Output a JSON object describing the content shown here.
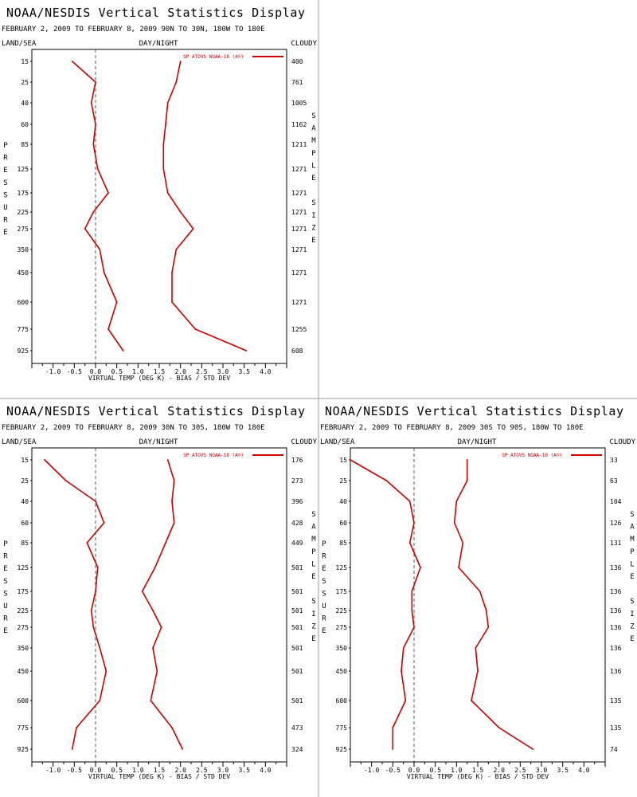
{
  "chart_data": [
    {
      "type": "line",
      "title": "NOAA/NESDIS Vertical Statistics Display",
      "subtitle": "FEBRUARY 2, 2009 TO FEBRUARY 8, 2009 90N TO 30N, 180W TO 180E",
      "header_left": "LAND/SEA",
      "header_center": "DAY/NIGHT",
      "header_right": "CLOUDY",
      "xlabel": "VIRTUAL TEMP (DEG K) - BIAS / STD DEV",
      "ylabel": "PRESSURE",
      "y2label": "SAMPLE SIZE",
      "legend": "SP ATOVS NOAA-18 (A®)",
      "xlim": [
        -1.5,
        4.5
      ],
      "x_ticks": [
        "-1.0",
        "-0.5",
        "0.0",
        "0.5",
        "1.0",
        "1.5",
        "2.0",
        "2.5",
        "3.0",
        "3.5",
        "4.0"
      ],
      "pressure_levels": [
        "15",
        "25",
        "40",
        "60",
        "85",
        "125",
        "175",
        "225",
        "275",
        "350",
        "450",
        "600",
        "775",
        "925"
      ],
      "sample_size": [
        "400",
        "761",
        "1005",
        "1162",
        "1211",
        "1271",
        "1271",
        "1271",
        "1271",
        "1271",
        "1271",
        "1271",
        "1255",
        "608"
      ],
      "color": "#cc0000",
      "series": [
        {
          "values": [
            -0.55,
            0.0,
            -0.1,
            0.0,
            -0.05,
            0.05,
            0.3,
            -0.05,
            -0.25,
            0.1,
            0.2,
            0.5,
            0.3,
            0.65
          ]
        },
        {
          "values": [
            2.0,
            1.9,
            1.7,
            1.65,
            1.6,
            1.6,
            1.7,
            2.0,
            2.3,
            1.9,
            1.8,
            1.8,
            2.35,
            3.55
          ]
        }
      ]
    },
    {
      "type": "line",
      "title": "NOAA/NESDIS Vertical Statistics Display",
      "subtitle": "FEBRUARY 2, 2009 TO FEBRUARY 8, 2009 30N TO 30S, 180W TO 180E",
      "header_left": "LAND/SEA",
      "header_center": "DAY/NIGHT",
      "header_right": "CLOUDY",
      "xlabel": "VIRTUAL TEMP (DEG K) - BIAS / STD DEV",
      "ylabel": "PRESSURE",
      "y2label": "SAMPLE SIZE",
      "legend": "SP ATOVS NOAA-18 (A®)",
      "xlim": [
        -1.5,
        4.5
      ],
      "x_ticks": [
        "-1.0",
        "-0.5",
        "0.0",
        "0.5",
        "1.0",
        "1.5",
        "2.0",
        "2.5",
        "3.0",
        "3.5",
        "4.0"
      ],
      "pressure_levels": [
        "15",
        "25",
        "40",
        "60",
        "85",
        "125",
        "175",
        "225",
        "275",
        "350",
        "450",
        "600",
        "775",
        "925"
      ],
      "sample_size": [
        "176",
        "273",
        "396",
        "428",
        "449",
        "501",
        "501",
        "501",
        "501",
        "501",
        "501",
        "501",
        "473",
        "324"
      ],
      "color": "#cc0000",
      "series": [
        {
          "values": [
            -1.2,
            -0.7,
            0.0,
            0.2,
            -0.2,
            0.05,
            0.0,
            -0.1,
            -0.05,
            0.1,
            0.25,
            0.1,
            -0.45,
            -0.55
          ]
        },
        {
          "values": [
            1.7,
            1.85,
            1.8,
            1.85,
            1.65,
            1.4,
            1.1,
            1.35,
            1.55,
            1.35,
            1.45,
            1.3,
            1.8,
            2.05
          ]
        }
      ]
    },
    {
      "type": "line",
      "title": "NOAA/NESDIS Vertical Statistics Display",
      "subtitle": "FEBRUARY 2, 2009 TO FEBRUARY 8, 2009 30S TO 90S, 180W TO 180E",
      "header_left": "LAND/SEA",
      "header_center": "DAY/NIGHT",
      "header_right": "CLOUDY",
      "xlabel": "VIRTUAL TEMP (DEG K) - BIAS / STD DEV",
      "ylabel": "PRESSURE",
      "y2label": "SAMPLE SIZE",
      "legend": "SP ATOVS NOAA-18 (A®)",
      "xlim": [
        -1.5,
        4.5
      ],
      "x_ticks": [
        "-1.0",
        "-0.5",
        "0.0",
        "0.5",
        "1.0",
        "1.5",
        "2.0",
        "2.5",
        "3.0",
        "3.5",
        "4.0"
      ],
      "pressure_levels": [
        "15",
        "25",
        "40",
        "60",
        "85",
        "125",
        "175",
        "225",
        "275",
        "350",
        "450",
        "600",
        "775",
        "925"
      ],
      "sample_size": [
        "33",
        "63",
        "104",
        "126",
        "131",
        "136",
        "136",
        "136",
        "136",
        "136",
        "136",
        "135",
        "135",
        "74"
      ],
      "color": "#cc0000",
      "series": [
        {
          "values": [
            -1.5,
            -0.65,
            -0.1,
            0.0,
            -0.1,
            0.15,
            -0.05,
            -0.05,
            0.0,
            -0.25,
            -0.3,
            -0.2,
            -0.5,
            -0.5
          ]
        },
        {
          "values": [
            1.25,
            1.25,
            1.0,
            0.95,
            1.15,
            1.05,
            1.55,
            1.7,
            1.75,
            1.45,
            1.5,
            1.35,
            2.0,
            2.8
          ]
        }
      ]
    }
  ]
}
